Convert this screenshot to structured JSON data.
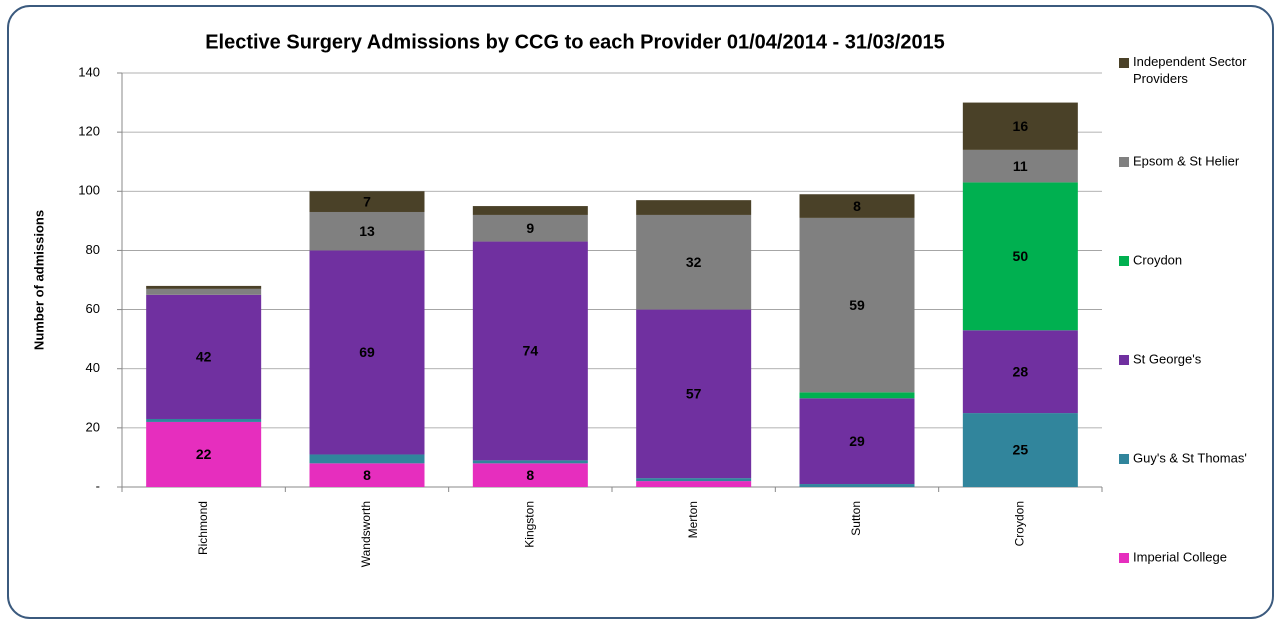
{
  "chart_data": {
    "type": "stacked_bar",
    "title": "Elective Surgery Admissions by CCG to each Provider 01/04/2014 - 31/03/2015",
    "y_label": "Number of admissions",
    "categories": [
      "Richmond",
      "Wandsworth",
      "Kingston",
      "Merton",
      "Sutton",
      "Croydon"
    ],
    "series": [
      {
        "name": "Imperial College",
        "color": "#e62ebe",
        "label_color": "#ffffff",
        "values": [
          22,
          8,
          8,
          2,
          0,
          0
        ]
      },
      {
        "name": "Guy's & St Thomas'",
        "color": "#31859c",
        "label_color": "#ffffff",
        "values": [
          1,
          3,
          1,
          1,
          1,
          25
        ]
      },
      {
        "name": "St George's",
        "color": "#7030a0",
        "label_color": "#ffffff",
        "values": [
          42,
          69,
          74,
          57,
          29,
          28
        ]
      },
      {
        "name": "Croydon",
        "color": "#00b050",
        "label_color": "#000000",
        "values": [
          0,
          0,
          0,
          0,
          2,
          50
        ]
      },
      {
        "name": "Epsom & St Helier",
        "color": "#808080",
        "label_color": "#ffffff",
        "values": [
          2,
          13,
          9,
          32,
          59,
          11
        ]
      },
      {
        "name": "Independent Sector Providers",
        "color": "#4a4128",
        "label_color": "#ffffff",
        "values": [
          1,
          7,
          3,
          5,
          8,
          16
        ]
      }
    ],
    "ylim": [
      0,
      140
    ],
    "yticks": [
      {
        "value": 0,
        "label": "-"
      },
      20,
      40,
      60,
      80,
      100,
      120,
      140
    ],
    "grid": true,
    "legend": "right"
  }
}
